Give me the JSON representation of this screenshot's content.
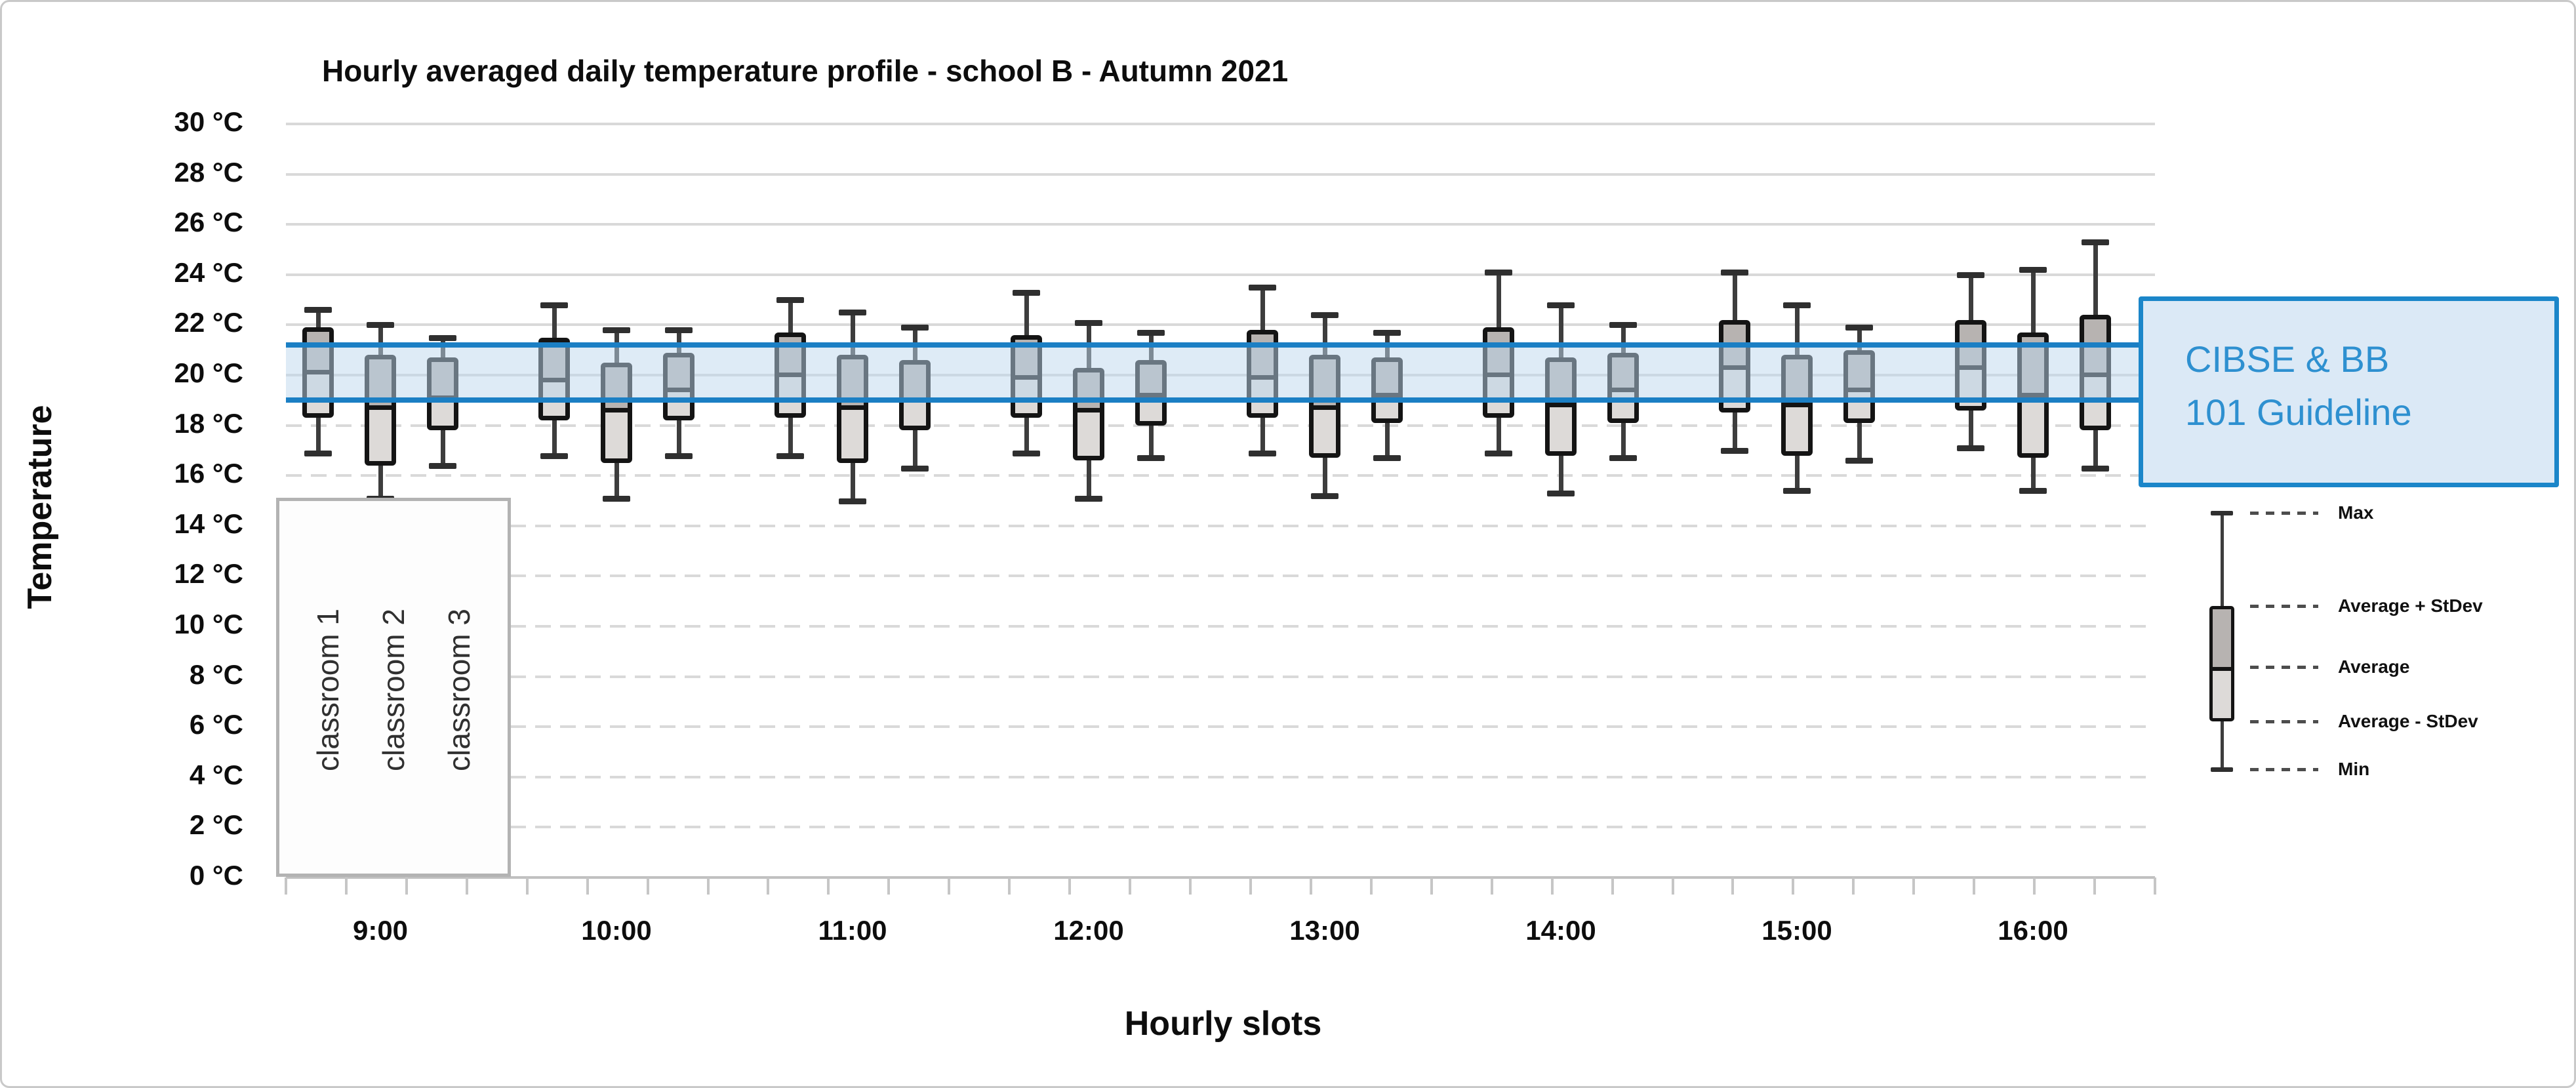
{
  "chart_data": {
    "type": "boxplot",
    "title": "Hourly averaged daily temperature profile - school B - Autumn 2021",
    "xlabel": "Hourly slots",
    "ylabel": "Temperature",
    "y_unit": "°C",
    "ylim": [
      0,
      30
    ],
    "y_tick_step": 2,
    "y_tick_labels": [
      "30 °C",
      "28 °C",
      "26 °C",
      "24 °C",
      "22 °C",
      "20 °C",
      "18 °C",
      "16 °C",
      "14 °C",
      "12 °C",
      "10 °C",
      "8 °C",
      "6 °C",
      "4 °C",
      "2 °C",
      "0 °C"
    ],
    "categories": [
      "9:00",
      "10:00",
      "11:00",
      "12:00",
      "13:00",
      "14:00",
      "15:00",
      "16:00"
    ],
    "stat_order": [
      "min",
      "avg_minus_stdev",
      "average",
      "avg_plus_stdev",
      "max"
    ],
    "series": [
      {
        "name": "classroom 1",
        "values": [
          [
            16.9,
            18.3,
            20.2,
            21.9,
            22.6
          ],
          [
            16.8,
            18.2,
            19.9,
            21.5,
            22.8
          ],
          [
            16.8,
            18.3,
            20.1,
            21.7,
            23.0
          ],
          [
            16.9,
            18.3,
            20.0,
            21.6,
            23.3
          ],
          [
            16.9,
            18.3,
            20.0,
            21.8,
            23.5
          ],
          [
            16.9,
            18.3,
            20.1,
            21.9,
            24.1
          ],
          [
            17.0,
            18.5,
            20.4,
            22.2,
            24.1
          ],
          [
            17.1,
            18.6,
            20.4,
            22.2,
            24.0
          ]
        ]
      },
      {
        "name": "classroom 2",
        "values": [
          [
            15.1,
            16.4,
            18.8,
            20.8,
            22.0
          ],
          [
            15.1,
            16.5,
            18.7,
            20.5,
            21.8
          ],
          [
            15.0,
            16.5,
            18.8,
            20.8,
            22.5
          ],
          [
            15.1,
            16.6,
            18.7,
            20.3,
            22.1
          ],
          [
            15.2,
            16.7,
            18.8,
            20.8,
            22.4
          ],
          [
            15.3,
            16.8,
            18.9,
            20.7,
            22.8
          ],
          [
            15.4,
            16.8,
            18.9,
            20.8,
            22.8
          ],
          [
            15.4,
            16.7,
            19.3,
            21.7,
            24.2
          ]
        ]
      },
      {
        "name": "classroom 3",
        "values": [
          [
            16.4,
            17.8,
            19.2,
            20.7,
            21.5
          ],
          [
            16.8,
            18.2,
            19.5,
            20.9,
            21.8
          ],
          [
            16.3,
            17.8,
            19.1,
            20.6,
            21.9
          ],
          [
            16.7,
            18.0,
            19.3,
            20.6,
            21.7
          ],
          [
            16.7,
            18.1,
            19.3,
            20.7,
            21.7
          ],
          [
            16.7,
            18.1,
            19.5,
            20.9,
            22.0
          ],
          [
            16.6,
            18.1,
            19.5,
            21.0,
            21.9
          ],
          [
            16.3,
            17.8,
            20.1,
            22.4,
            25.3
          ]
        ]
      }
    ],
    "guideline_band": {
      "low": 19.0,
      "high": 21.2,
      "label_line1": "CIBSE & BB",
      "label_line2": "101 Guideline"
    },
    "legend_entries": [
      "Max",
      "Average + StDev",
      "Average",
      "Average - StDev",
      "Min"
    ],
    "grid": "horizontal; solid lines 20-30 °C, dashed lines 2-18 °C",
    "legend_position": "right"
  },
  "colors": {
    "box_border": "#141414",
    "box_upper_fill": "#b7b3b1",
    "box_lower_fill": "#dddad8",
    "whisker": "#3d3d3d",
    "grid": "#d9d9d9",
    "axis": "#c0c0c0",
    "band_fill": "#bdd7ee",
    "band_border": "#1b7fc4",
    "guideline_box_fill": "#dbe9f6",
    "guideline_box_border": "#1b86c9",
    "guideline_text": "#2e90d0",
    "text": "#0d0d0d"
  }
}
